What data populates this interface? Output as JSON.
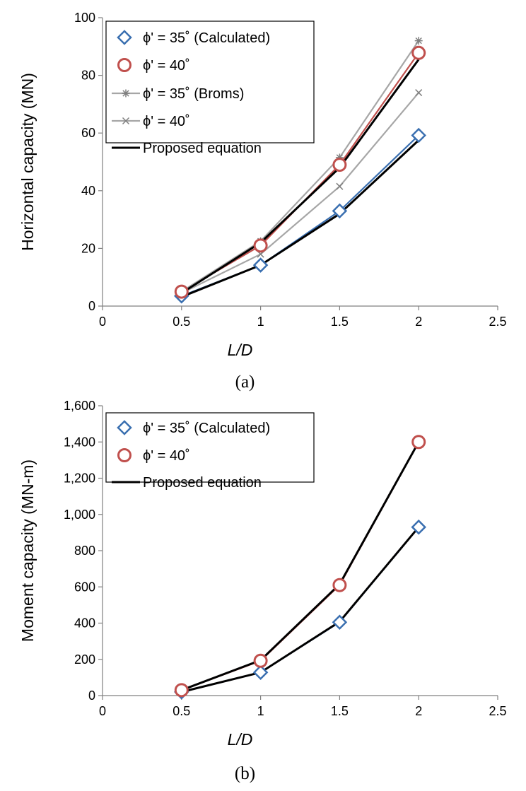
{
  "chart_data": [
    {
      "type": "line",
      "caption": "(a)",
      "xlabel": "L/D",
      "ylabel": "Horizontal capacity (MN)",
      "xlim": [
        0,
        2.5
      ],
      "ylim": [
        0,
        100
      ],
      "xticks": [
        "0",
        "0.5",
        "1",
        "1.5",
        "2",
        "2.5"
      ],
      "yticks": [
        "0",
        "20",
        "40",
        "60",
        "80",
        "100"
      ],
      "grid": false,
      "legend_position": "top-left",
      "series": [
        {
          "name": "ϕ' = 35˚ (Calculated)",
          "marker": "diamond",
          "color": "#3a6fb0",
          "x": [
            0.5,
            1,
            1.5,
            2
          ],
          "y": [
            3.5,
            14.2,
            33,
            59.2
          ]
        },
        {
          "name": "ϕ' = 40˚",
          "marker": "circle",
          "color": "#c0504d",
          "x": [
            0.5,
            1,
            1.5,
            2
          ],
          "y": [
            5,
            21,
            49,
            87.8
          ]
        },
        {
          "name": "ϕ' = 35˚ (Broms)",
          "marker": "star",
          "color": "#a6a6a6",
          "x": [
            0.5,
            1,
            1.5,
            2
          ],
          "y": [
            5,
            22.5,
            51.5,
            92
          ]
        },
        {
          "name": "ϕ' = 40˚",
          "marker": "x",
          "color": "#a6a6a6",
          "x": [
            0.5,
            1,
            1.5,
            2
          ],
          "y": [
            4.5,
            18,
            41.5,
            74
          ]
        },
        {
          "name": "Proposed equation",
          "marker": "none",
          "color": "#000000",
          "x": [
            0.5,
            1,
            1.5,
            2
          ],
          "y": [
            4.5,
            22,
            48,
            85.5
          ]
        },
        {
          "name": "",
          "marker": "none",
          "color": "#000000",
          "x": [
            0.5,
            1,
            1.5,
            2
          ],
          "y": [
            3.2,
            14.2,
            32,
            57.5
          ]
        }
      ]
    },
    {
      "type": "line",
      "caption": "(b)",
      "xlabel": "L/D",
      "ylabel": "Moment capacity (MN-m)",
      "xlim": [
        0,
        2.5
      ],
      "ylim": [
        0,
        1600
      ],
      "xticks": [
        "0",
        "0.5",
        "1",
        "1.5",
        "2",
        "2.5"
      ],
      "yticks": [
        "0",
        "200",
        "400",
        "600",
        "800",
        "1,000",
        "1,200",
        "1,400",
        "1,600"
      ],
      "grid": false,
      "legend_position": "top-left",
      "series": [
        {
          "name": "ϕ' = 35˚ (Calculated)",
          "marker": "diamond",
          "color": "#3a6fb0",
          "x": [
            0.5,
            1,
            1.5,
            2
          ],
          "y": [
            20,
            128,
            405,
            930
          ]
        },
        {
          "name": "ϕ' = 40˚",
          "marker": "circle",
          "color": "#c0504d",
          "x": [
            0.5,
            1,
            1.5,
            2
          ],
          "y": [
            30,
            192,
            610,
            1400
          ]
        },
        {
          "name": "Proposed equation",
          "marker": "none",
          "color": "#000000",
          "x": [
            0.5,
            1,
            1.5,
            2
          ],
          "y": [
            30,
            195,
            615,
            1400
          ]
        },
        {
          "name": "",
          "marker": "none",
          "color": "#000000",
          "x": [
            0.5,
            1,
            1.5,
            2
          ],
          "y": [
            20,
            128,
            408,
            930
          ]
        }
      ]
    }
  ]
}
